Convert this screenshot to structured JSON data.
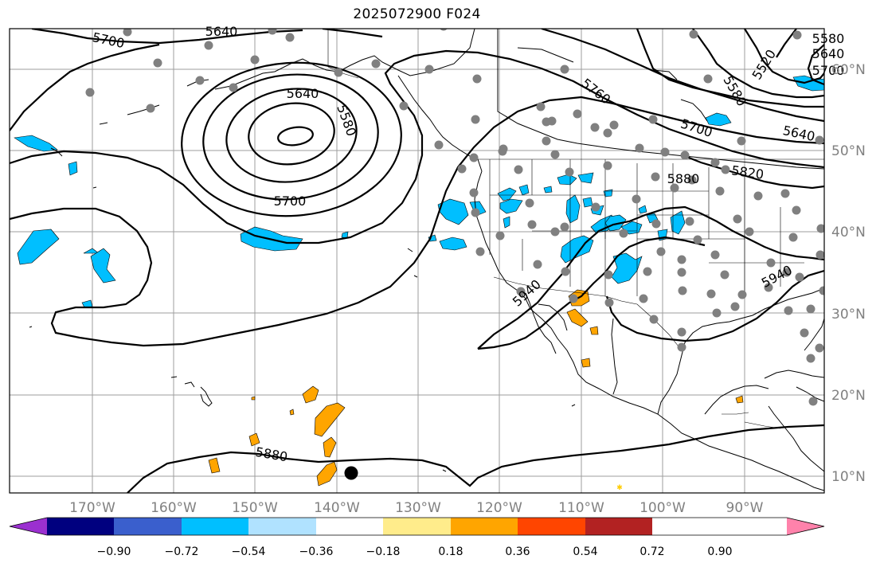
{
  "title": "2025072900 F024",
  "lon_labels": [
    "170°W",
    "160°W",
    "150°W",
    "140°W",
    "130°W",
    "120°W",
    "110°W",
    "100°W",
    "90°W"
  ],
  "lat_labels": [
    "60°N",
    "50°N",
    "40°N",
    "30°N",
    "20°N",
    "10°N"
  ],
  "contour_labels": [
    "5700",
    "5640",
    "5640",
    "5580",
    "5700",
    "5640",
    "5580",
    "5700",
    "5760",
    "5520",
    "5580",
    "5640",
    "5700",
    "5820",
    "5880",
    "5940",
    "5940",
    "5880"
  ],
  "colorbar": {
    "ticks": [
      "−0.90",
      "−0.72",
      "−0.54",
      "−0.36",
      "−0.18",
      "0.18",
      "0.36",
      "0.54",
      "0.72",
      "0.90"
    ],
    "colors": [
      "#9b30d0",
      "#00007f",
      "#3a5fcd",
      "#00bfff",
      "#b0e2ff",
      "#ffffff",
      "#ffec8b",
      "#ffa500",
      "#ff4500",
      "#b22222",
      "#ff82ab"
    ]
  },
  "colors": {
    "contour": "#000000",
    "station": "#808080",
    "grid": "#8c8c8c",
    "negative_fill": "#00bfff",
    "positive_fill": "#ffa500"
  }
}
